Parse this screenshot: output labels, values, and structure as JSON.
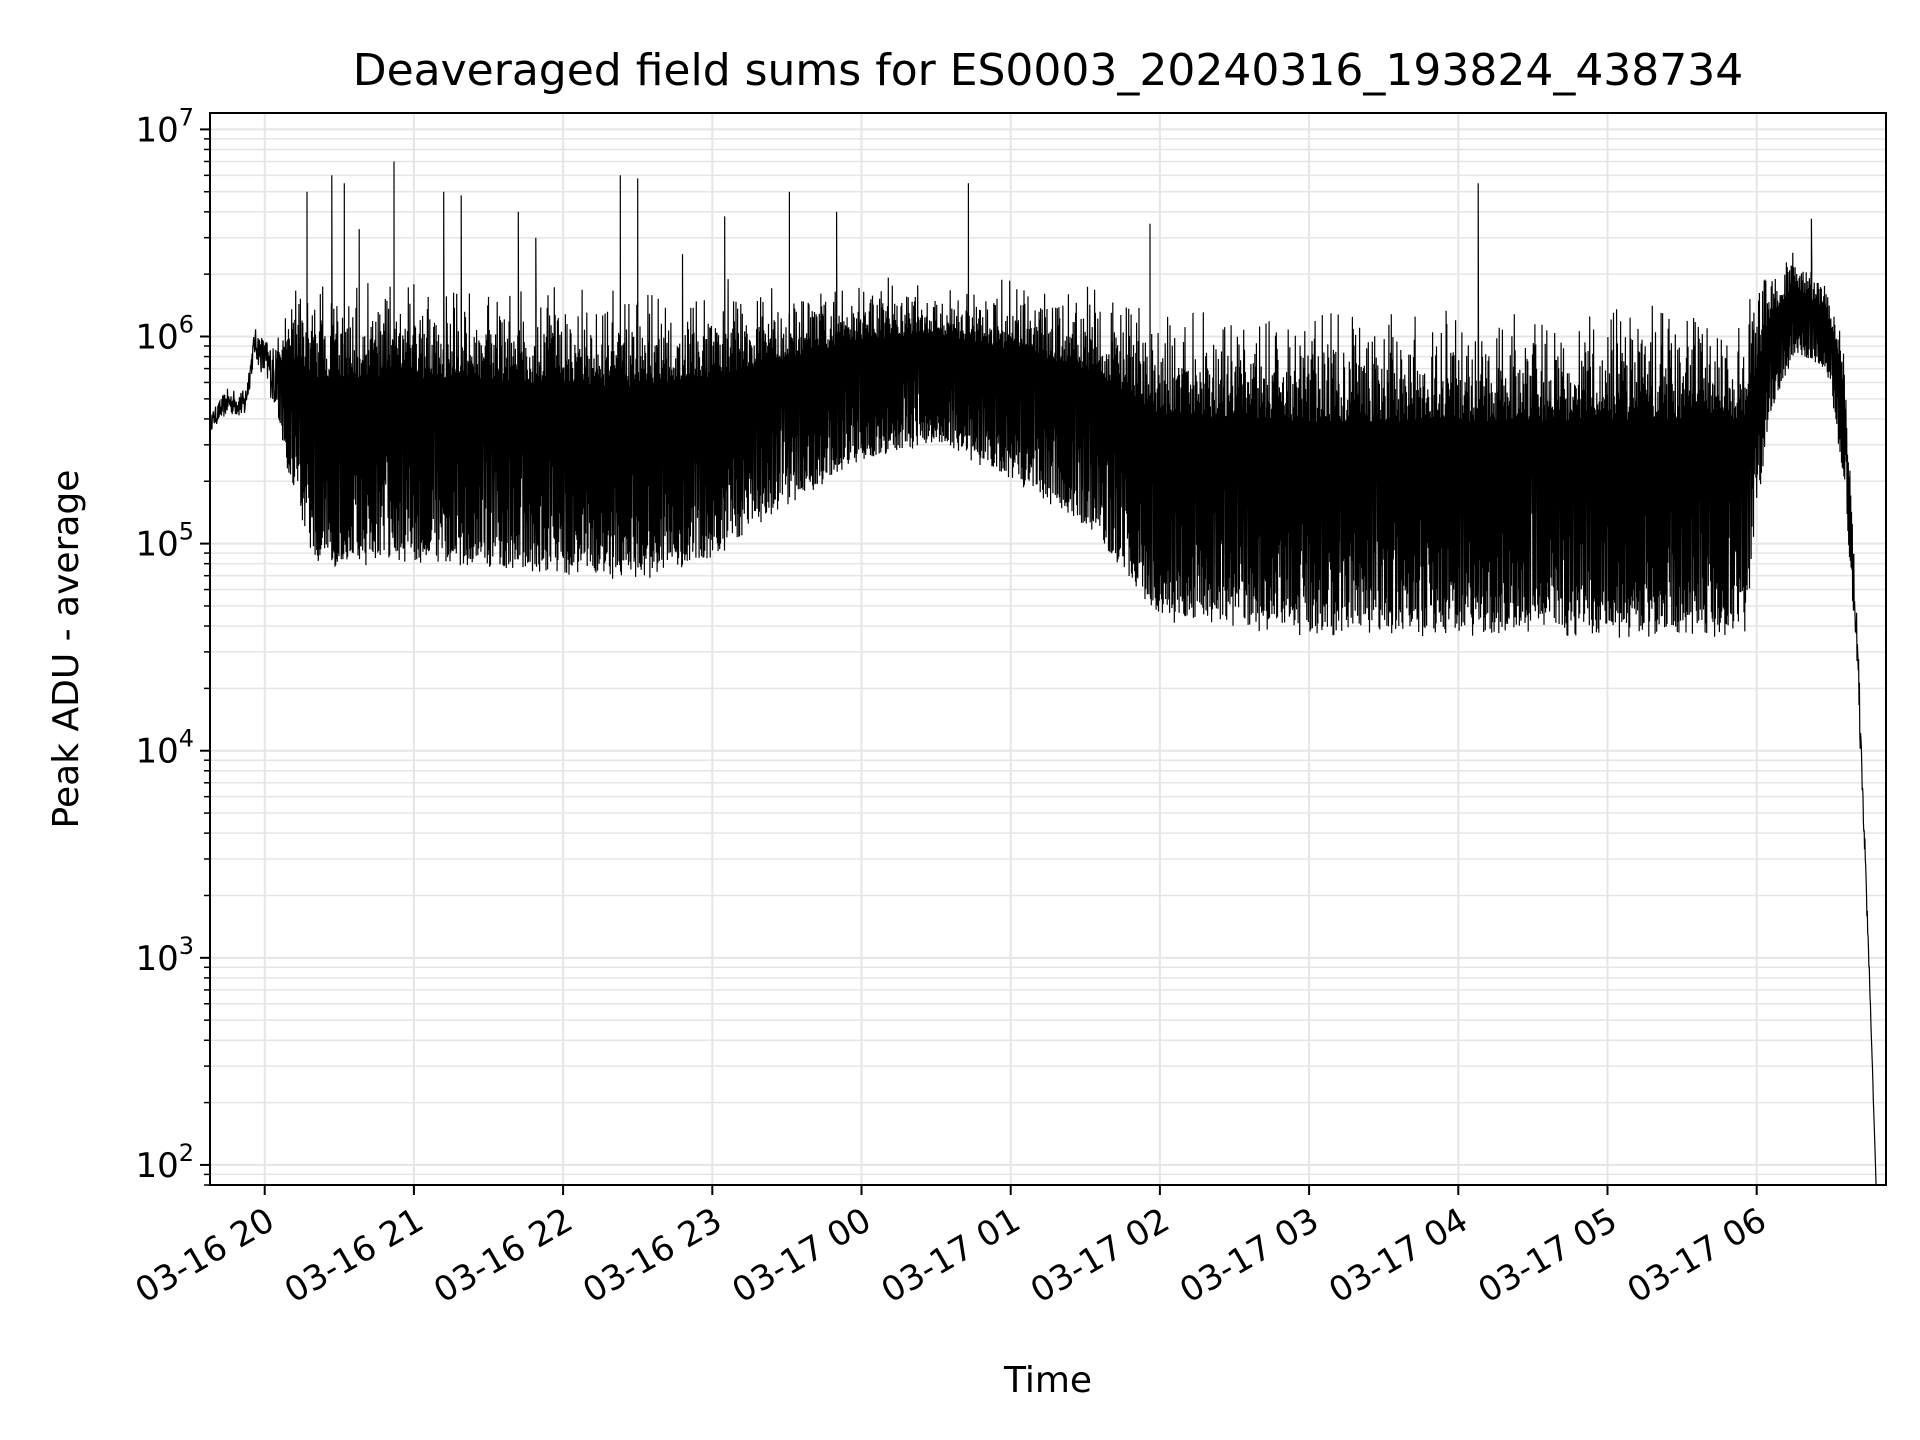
{
  "chart_data": {
    "type": "line",
    "title": "Deaveraged field sums for ES0003_20240316_193824_438734",
    "xlabel": "Time",
    "ylabel": "Peak ADU - average",
    "yscale": "log",
    "ylim": [
      80,
      12000000
    ],
    "xlim": [
      "2024-03-16T19:38",
      "2024-03-17T06:52"
    ],
    "grid": true,
    "line_color": "#000000",
    "grid_color": "#e5e5e5",
    "y_ticks": [
      {
        "value": 100,
        "base": "10",
        "exp": "2"
      },
      {
        "value": 1000,
        "base": "10",
        "exp": "3"
      },
      {
        "value": 10000,
        "base": "10",
        "exp": "4"
      },
      {
        "value": 100000,
        "base": "10",
        "exp": "5"
      },
      {
        "value": 1000000,
        "base": "10",
        "exp": "6"
      },
      {
        "value": 10000000,
        "base": "10",
        "exp": "7"
      }
    ],
    "x_ticks": [
      {
        "time": "2024-03-16T20:00",
        "label": "03-16 20"
      },
      {
        "time": "2024-03-16T21:00",
        "label": "03-16 21"
      },
      {
        "time": "2024-03-16T22:00",
        "label": "03-16 22"
      },
      {
        "time": "2024-03-16T23:00",
        "label": "03-16 23"
      },
      {
        "time": "2024-03-17T00:00",
        "label": "03-17 00"
      },
      {
        "time": "2024-03-17T01:00",
        "label": "03-17 01"
      },
      {
        "time": "2024-03-17T02:00",
        "label": "03-17 02"
      },
      {
        "time": "2024-03-17T03:00",
        "label": "03-17 03"
      },
      {
        "time": "2024-03-17T04:00",
        "label": "03-17 04"
      },
      {
        "time": "2024-03-17T05:00",
        "label": "03-17 05"
      },
      {
        "time": "2024-03-17T06:00",
        "label": "03-17 06"
      }
    ],
    "series": [
      {
        "envelope": [
          {
            "time": "2024-03-16T19:38",
            "low": 350000,
            "high": 420000
          },
          {
            "time": "2024-03-16T19:45",
            "low": 420000,
            "high": 560000
          },
          {
            "time": "2024-03-16T19:52",
            "low": 400000,
            "high": 550000
          },
          {
            "time": "2024-03-16T19:56",
            "low": 800000,
            "high": 1100000
          },
          {
            "time": "2024-03-16T20:04",
            "low": 450000,
            "high": 900000
          },
          {
            "time": "2024-03-16T20:10",
            "low": 200000,
            "high": 1700000
          },
          {
            "time": "2024-03-16T20:20",
            "low": 75000,
            "high": 2000000
          },
          {
            "time": "2024-03-16T21:00",
            "low": 80000,
            "high": 1900000
          },
          {
            "time": "2024-03-16T22:00",
            "low": 70000,
            "high": 1850000
          },
          {
            "time": "2024-03-16T22:30",
            "low": 65000,
            "high": 1800000
          },
          {
            "time": "2024-03-16T23:00",
            "low": 80000,
            "high": 1900000
          },
          {
            "time": "2024-03-16T23:30",
            "low": 150000,
            "high": 1900000
          },
          {
            "time": "2024-03-17T00:00",
            "low": 250000,
            "high": 2000000
          },
          {
            "time": "2024-03-17T00:30",
            "low": 300000,
            "high": 2000000
          },
          {
            "time": "2024-03-17T01:00",
            "low": 200000,
            "high": 1900000
          },
          {
            "time": "2024-03-17T01:30",
            "low": 120000,
            "high": 1800000
          },
          {
            "time": "2024-03-17T02:00",
            "low": 40000,
            "high": 1500000
          },
          {
            "time": "2024-03-17T03:00",
            "low": 35000,
            "high": 1400000
          },
          {
            "time": "2024-03-17T04:00",
            "low": 35000,
            "high": 1400000
          },
          {
            "time": "2024-03-17T05:00",
            "low": 35000,
            "high": 1450000
          },
          {
            "time": "2024-03-17T05:55",
            "low": 35000,
            "high": 1500000
          },
          {
            "time": "2024-03-17T06:05",
            "low": 400000,
            "high": 2200000
          },
          {
            "time": "2024-03-17T06:15",
            "low": 800000,
            "high": 2700000
          },
          {
            "time": "2024-03-17T06:28",
            "low": 700000,
            "high": 1900000
          },
          {
            "time": "2024-03-17T06:35",
            "low": 200000,
            "high": 1000000
          },
          {
            "time": "2024-03-17T06:40",
            "low": 30000,
            "high": 60000
          },
          {
            "time": "2024-03-17T06:45",
            "low": 1000,
            "high": 1200
          },
          {
            "time": "2024-03-17T06:48",
            "low": 80,
            "high": 80
          }
        ],
        "spikes": [
          {
            "time": "2024-03-16T20:17",
            "value": 5000000
          },
          {
            "time": "2024-03-16T20:27",
            "value": 6000000
          },
          {
            "time": "2024-03-16T20:32",
            "value": 5500000
          },
          {
            "time": "2024-03-16T20:38",
            "value": 3300000
          },
          {
            "time": "2024-03-16T20:52",
            "value": 7000000
          },
          {
            "time": "2024-03-16T21:12",
            "value": 5000000
          },
          {
            "time": "2024-03-16T21:19",
            "value": 4800000
          },
          {
            "time": "2024-03-16T21:42",
            "value": 4000000
          },
          {
            "time": "2024-03-16T21:49",
            "value": 3000000
          },
          {
            "time": "2024-03-16T22:23",
            "value": 6000000
          },
          {
            "time": "2024-03-16T22:30",
            "value": 5800000
          },
          {
            "time": "2024-03-16T22:48",
            "value": 2500000
          },
          {
            "time": "2024-03-16T23:05",
            "value": 3800000
          },
          {
            "time": "2024-03-16T23:31",
            "value": 5000000
          },
          {
            "time": "2024-03-16T23:50",
            "value": 4000000
          },
          {
            "time": "2024-03-17T00:43",
            "value": 5500000
          },
          {
            "time": "2024-03-17T01:56",
            "value": 3500000
          },
          {
            "time": "2024-03-17T04:08",
            "value": 5500000
          },
          {
            "time": "2024-03-17T06:22",
            "value": 3700000
          }
        ]
      }
    ]
  }
}
